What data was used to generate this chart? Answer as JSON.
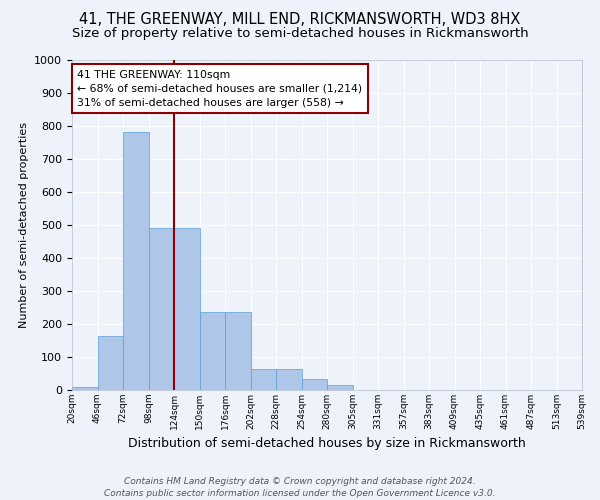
{
  "title": "41, THE GREENWAY, MILL END, RICKMANSWORTH, WD3 8HX",
  "subtitle": "Size of property relative to semi-detached houses in Rickmansworth",
  "xlabel": "Distribution of semi-detached houses by size in Rickmansworth",
  "ylabel": "Number of semi-detached properties",
  "bar_values": [
    10,
    163,
    782,
    492,
    490,
    235,
    235,
    65,
    65,
    32,
    14,
    0,
    0,
    0,
    0,
    0,
    0,
    0,
    0,
    0
  ],
  "bar_labels": [
    "20sqm",
    "46sqm",
    "72sqm",
    "98sqm",
    "124sqm",
    "150sqm",
    "176sqm",
    "202sqm",
    "228sqm",
    "254sqm",
    "280sqm",
    "305sqm",
    "331sqm",
    "357sqm",
    "383sqm",
    "409sqm",
    "435sqm",
    "461sqm",
    "487sqm",
    "513sqm",
    "539sqm"
  ],
  "bar_color": "#aec6e8",
  "bar_edge_color": "#5a9fd4",
  "vline_x": 3.5,
  "vline_color": "#8b0000",
  "annotation_text": "41 THE GREENWAY: 110sqm\n← 68% of semi-detached houses are smaller (1,214)\n31% of semi-detached houses are larger (558) →",
  "annotation_box_color": "#ffffff",
  "annotation_box_edge": "#8b0000",
  "ylim": [
    0,
    1000
  ],
  "yticks": [
    0,
    100,
    200,
    300,
    400,
    500,
    600,
    700,
    800,
    900,
    1000
  ],
  "background_color": "#eef2fb",
  "plot_bg_color": "#eef2fb",
  "title_fontsize": 10.5,
  "subtitle_fontsize": 9.5,
  "footer_text": "Contains HM Land Registry data © Crown copyright and database right 2024.\nContains public sector information licensed under the Open Government Licence v3.0.",
  "grid_color": "#ffffff"
}
